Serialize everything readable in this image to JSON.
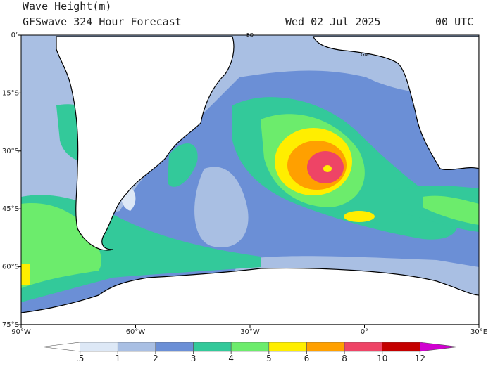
{
  "header": {
    "title": "Wave Height(m)",
    "model": "GFSwave 324 Hour Forecast",
    "date": "Wed 02 Jul 2025",
    "time": "00 UTC"
  },
  "map": {
    "lat_labels": [
      "0°",
      "15°S",
      "30°S",
      "45°S",
      "60°S",
      "75°S"
    ],
    "lon_labels": [
      "90°W",
      "60°W",
      "30°W",
      "0°",
      "30°E"
    ],
    "markers": [
      "EQ",
      "GM"
    ]
  },
  "colorbar": {
    "colors": [
      "#ffffff",
      "#dde8f6",
      "#a9bfe3",
      "#6b8fd6",
      "#33c99a",
      "#6cec6c",
      "#ffee00",
      "#ffa000",
      "#ee4466",
      "#c40000",
      "#d000d0"
    ],
    "ticks": [
      {
        "value": 0.5,
        "label": ".5"
      },
      1,
      2,
      3,
      4,
      5,
      6,
      8,
      10,
      12
    ]
  }
}
